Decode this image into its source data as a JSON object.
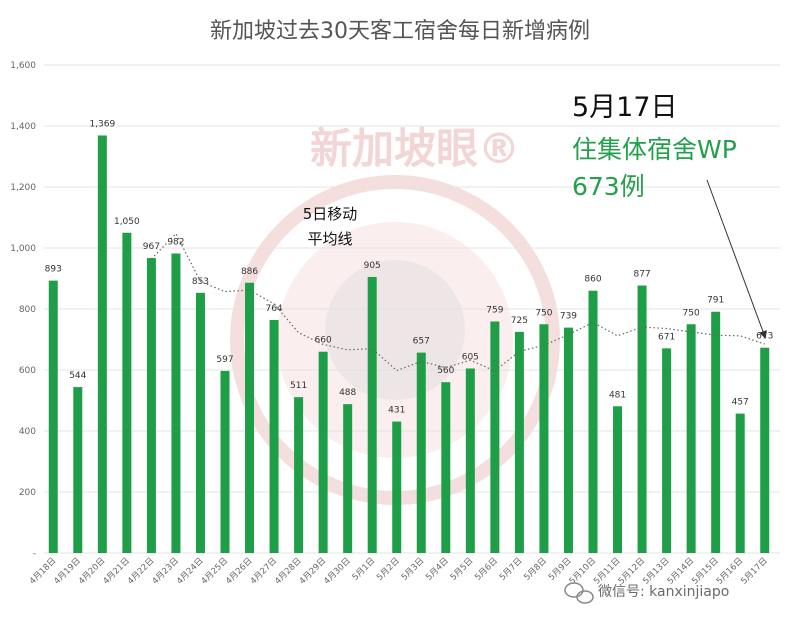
{
  "chart_data": {
    "type": "bar",
    "title": "新加坡过去30天客工宿舍每日新增病例",
    "categories": [
      "4月18日",
      "4月19日",
      "4月20日",
      "4月21日",
      "4月22日",
      "4月23日",
      "4月24日",
      "4月25日",
      "4月26日",
      "4月27日",
      "4月28日",
      "4月29日",
      "4月30日",
      "5月1日",
      "5月2日",
      "5月3日",
      "5月4日",
      "5月5日",
      "5月6日",
      "5月7日",
      "5月8日",
      "5月9日",
      "5月10日",
      "5月11日",
      "5月12日",
      "5月13日",
      "5月14日",
      "5月15日",
      "5月16日",
      "5月17日"
    ],
    "values": [
      893,
      544,
      1369,
      1050,
      967,
      982,
      853,
      597,
      886,
      764,
      511,
      660,
      488,
      905,
      431,
      657,
      560,
      605,
      759,
      725,
      750,
      739,
      860,
      481,
      877,
      671,
      750,
      791,
      457,
      673
    ],
    "value_labels": [
      "893",
      "544",
      "1,369",
      "1,050",
      "967",
      "982",
      "853",
      "597",
      "886",
      "764",
      "511",
      "660",
      "488",
      "905",
      "431",
      "657",
      "560",
      "605",
      "759",
      "725",
      "750",
      "739",
      "860",
      "481",
      "877",
      "671",
      "750",
      "791",
      "457",
      "673"
    ],
    "moving_average": {
      "label_line1": "5日移动",
      "label_line2": "平均线",
      "start_index": 4,
      "values": [
        964,
        1047,
        890,
        857,
        862,
        817,
        722,
        684,
        666,
        670,
        598,
        628,
        608,
        632,
        597,
        661,
        681,
        716,
        756,
        712,
        741,
        736,
        725,
        714,
        712,
        685
      ]
    },
    "yticks": [
      0,
      200,
      400,
      600,
      800,
      1000,
      1200,
      1400,
      1600
    ],
    "ytick_labels": [
      "-",
      "200",
      "400",
      "600",
      "800",
      "1,000",
      "1,200",
      "1,400",
      "1,600"
    ],
    "ylim": [
      0,
      1600
    ],
    "grid": true,
    "colors": {
      "bar": "#1e9e46",
      "grid": "#e3e3e3",
      "ma_line": "#666666",
      "accent_green": "#22a14a"
    }
  },
  "annotation": {
    "date": "5月17日",
    "line1": "住集体宿舍WP",
    "line2": "673例"
  },
  "watermark": {
    "text": "新加坡眼®"
  },
  "footer": {
    "text": "微信号: kanxinjiapo",
    "icon": "wechat-icon"
  }
}
